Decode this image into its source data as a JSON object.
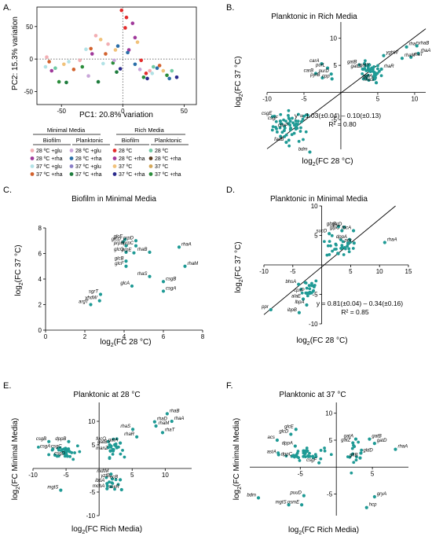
{
  "colors": {
    "teal": "#1f9a95",
    "glu28": "#f2aeb3",
    "rha28": "#a0399b",
    "glu37": "#b2e2e6",
    "rha37": "#d2622e",
    "rich28": "#e32c2c",
    "richRha28": "#2b6fa8",
    "rich37": "#f1c27b",
    "richRha37": "#2b8d3b",
    "pl28glu": "#c9a6d9",
    "pl28rha": "#e8c93f",
    "pl37glu": "#8a7ec7",
    "pl37rha": "#1e7c3d",
    "rich28pl": "#6fc9a3",
    "richRha28pl": "#5a3b1e",
    "rich37pl": "#d4a85a",
    "richRha37pl": "#2a2a8c"
  },
  "legend": {
    "group_minimal": "Minimal Media",
    "group_rich": "Rich Media",
    "sub_biofilm": "Biofilm",
    "sub_planktonic": "Planktonic",
    "minimal_biofilm": [
      "28 ºC +glu",
      "28 ºC +rha",
      "37 ºC +glu",
      "37 ºC +rha"
    ],
    "minimal_planktonic": [
      "28 ºC +glu",
      "28 ºC +rha",
      "37 ºC +glu",
      "37 ºC +rha"
    ],
    "rich_biofilm": [
      "28 ºC",
      "28 ºC +rha",
      "37 ºC",
      "37 ºC +rha"
    ],
    "rich_planktonic": [
      "28 ºC",
      "28 ºC +rha",
      "37 ºC",
      "37 ºC +rha"
    ]
  },
  "chart_data": [
    {
      "panel": "A.",
      "type": "scatter",
      "title": "",
      "xlabel": "PC1: 20.8% variation",
      "ylabel": "PC2: 15.3% variation",
      "xlim": [
        -70,
        60
      ],
      "ylim": [
        -70,
        80
      ],
      "xticks": [
        "-50",
        "0",
        "50"
      ],
      "yticks": [
        "-50",
        "0",
        "50"
      ],
      "series": [
        {
          "color_key": "glu28",
          "points": [
            [
              -62,
              3
            ],
            [
              -35,
              -2
            ],
            [
              -22,
              36
            ],
            [
              -12,
              23
            ],
            [
              22,
              -18
            ]
          ]
        },
        {
          "color_key": "rha28",
          "points": [
            [
              -58,
              -18
            ],
            [
              -25,
              8
            ],
            [
              5,
              14
            ],
            [
              8,
              55
            ],
            [
              10,
              33
            ]
          ]
        },
        {
          "color_key": "glu37",
          "points": [
            [
              -63,
              -12
            ],
            [
              -44,
              -4
            ],
            [
              -30,
              15
            ],
            [
              -16,
              -7
            ],
            [
              24,
              -22
            ]
          ]
        },
        {
          "color_key": "rha37",
          "points": [
            [
              -60,
              -4
            ],
            [
              -40,
              -16
            ],
            [
              -26,
              16
            ],
            [
              -14,
              8
            ],
            [
              30,
              -10
            ]
          ]
        },
        {
          "color_key": "rich28",
          "points": [
            [
              -1,
              75
            ],
            [
              3,
              64
            ],
            [
              2,
              48
            ],
            [
              15,
              -2
            ],
            [
              19,
              -22
            ]
          ]
        },
        {
          "color_key": "richRha28",
          "points": [
            [
              -4,
              20
            ],
            [
              4,
              10
            ],
            [
              10,
              -8
            ],
            [
              28,
              -14
            ],
            [
              38,
              -30
            ]
          ]
        },
        {
          "color_key": "rich37",
          "points": [
            [
              -48,
              -8
            ],
            [
              -18,
              30
            ],
            [
              -6,
              14
            ],
            [
              12,
              26
            ],
            [
              33,
              -18
            ]
          ]
        },
        {
          "color_key": "richRha37",
          "points": [
            [
              -52,
              -35
            ],
            [
              -33,
              -12
            ],
            [
              -8,
              -6
            ],
            [
              17,
              -28
            ],
            [
              36,
              -25
            ]
          ]
        },
        {
          "color_key": "pl28glu",
          "points": [
            [
              -28,
              -26
            ],
            [
              -7,
              -2
            ],
            [
              14,
              -16
            ]
          ]
        },
        {
          "color_key": "pl37rha",
          "points": [
            [
              -46,
              -36
            ],
            [
              -20,
              -35
            ],
            [
              -5,
              -20
            ]
          ]
        },
        {
          "color_key": "rich28pl",
          "points": [
            [
              -55,
              -14
            ],
            [
              25,
              -12
            ],
            [
              40,
              -18
            ]
          ]
        },
        {
          "color_key": "richRha37pl",
          "points": [
            [
              -2,
              -15
            ],
            [
              20,
              -30
            ],
            [
              44,
              -28
            ]
          ]
        }
      ]
    },
    {
      "panel": "B.",
      "type": "scatter",
      "title": "Planktonic in Rich Media",
      "xlabel": "log2(FC 28 °C)",
      "ylabel": "log2(FC 37 °C)",
      "xlim": [
        -10,
        11.5
      ],
      "ylim": [
        -10.5,
        13
      ],
      "xticks": [
        "-10",
        "-5",
        "5",
        "10"
      ],
      "yticks": [
        "-5",
        "5",
        "10"
      ],
      "equation": "y = 1.03(±0.04) – 0.10(±0.13)",
      "r2": "R² = 0.80",
      "fit": {
        "slope": 1.03,
        "intercept": -0.1
      },
      "labeled_points": [
        {
          "name": "rhaD",
          "x": 8.9,
          "y": 8.4
        },
        {
          "name": "rhaB",
          "x": 10.3,
          "y": 8.6
        },
        {
          "name": "rhaA",
          "x": 10.5,
          "y": 7.2
        },
        {
          "name": "rhaT",
          "x": 9.5,
          "y": 6.5
        },
        {
          "name": "rhaM",
          "x": 8.3,
          "y": 6.3
        },
        {
          "name": "yghW",
          "x": 5.8,
          "y": 6.8
        },
        {
          "name": "gatB",
          "x": 2.5,
          "y": 5.1
        },
        {
          "name": "gatD",
          "x": 3.0,
          "y": 4.3
        },
        {
          "name": "gatY",
          "x": 4.2,
          "y": 4.5
        },
        {
          "name": "rhaR",
          "x": 5.5,
          "y": 4.3
        },
        {
          "name": "gatA",
          "x": 4.6,
          "y": 2.5
        },
        {
          "name": "rhaS",
          "x": 4.8,
          "y": 1.8
        },
        {
          "name": "carA",
          "x": -2.6,
          "y": 5.3
        },
        {
          "name": "purL",
          "x": -1.8,
          "y": 4.5
        },
        {
          "name": "carB",
          "x": -3.4,
          "y": 3.5
        },
        {
          "name": "purD",
          "x": -1.3,
          "y": 3.4
        },
        {
          "name": "pyrB",
          "x": -2.5,
          "y": 2.7
        },
        {
          "name": "cpp",
          "x": -1.2,
          "y": 2.5
        },
        {
          "name": "csgE",
          "x": -9.0,
          "y": -4.4
        },
        {
          "name": "csgF",
          "x": -8.2,
          "y": -5.3
        },
        {
          "name": "cpxP",
          "x": -6.8,
          "y": -6.6
        },
        {
          "name": "fadB",
          "x": -7.4,
          "y": -9.2
        },
        {
          "name": "bdm",
          "x": -4.2,
          "y": -11.0
        }
      ],
      "clusters": [
        {
          "cx": -6.6,
          "cy": -6.2,
          "sx": 1.3,
          "sy": 1.4,
          "n": 55
        },
        {
          "cx": 3.8,
          "cy": 3.6,
          "sx": 0.8,
          "sy": 0.9,
          "n": 40
        }
      ]
    },
    {
      "panel": "C.",
      "type": "scatter",
      "title": "Biofilm in Minimal Media",
      "xlabel": "log2(FC 28 °C)",
      "ylabel": "log2(FC 37 °C)",
      "xlim": [
        0,
        8
      ],
      "ylim": [
        0,
        8
      ],
      "xticks": [
        "0",
        "2",
        "4",
        "6",
        "8"
      ],
      "yticks": [
        "0",
        "2",
        "4",
        "6",
        "8"
      ],
      "labeled_points": [
        {
          "name": "glcE",
          "x": 4.05,
          "y": 7.1
        },
        {
          "name": "glcD",
          "x": 3.95,
          "y": 6.9
        },
        {
          "name": "prpD",
          "x": 4.6,
          "y": 7.0
        },
        {
          "name": "prpB",
          "x": 4.1,
          "y": 6.6
        },
        {
          "name": "prpC",
          "x": 4.6,
          "y": 6.6
        },
        {
          "name": "glcG",
          "x": 4.1,
          "y": 6.1
        },
        {
          "name": "prpE",
          "x": 4.5,
          "y": 6.05
        },
        {
          "name": "rhaB",
          "x": 5.3,
          "y": 6.1
        },
        {
          "name": "rhaA",
          "x": 6.8,
          "y": 6.5
        },
        {
          "name": "glcB",
          "x": 4.1,
          "y": 5.4
        },
        {
          "name": "glcF",
          "x": 4.1,
          "y": 5.0
        },
        {
          "name": "rhaM",
          "x": 7.1,
          "y": 5.0
        },
        {
          "name": "rhaS",
          "x": 5.3,
          "y": 4.2
        },
        {
          "name": "csgB",
          "x": 6.0,
          "y": 3.8
        },
        {
          "name": "glcA",
          "x": 4.4,
          "y": 3.45
        },
        {
          "name": "csgA",
          "x": 6.0,
          "y": 3.05
        },
        {
          "name": "sgrT",
          "x": 2.8,
          "y": 2.8
        },
        {
          "name": "yhdW",
          "x": 2.75,
          "y": 2.3
        },
        {
          "name": "argT",
          "x": 2.3,
          "y": 2.0
        }
      ]
    },
    {
      "panel": "D.",
      "type": "scatter",
      "title": "Planktonic in Minimal Media",
      "xlabel": "log2(FC 28 °C)",
      "ylabel": "log2(FC 37 °C)",
      "xlim": [
        -10,
        15
      ],
      "ylim": [
        -10,
        10
      ],
      "xticks": [
        "-10",
        "-5",
        "5",
        "10",
        "15"
      ],
      "yticks": [
        "-10",
        "-5",
        "5",
        "10"
      ],
      "equation": "y = 0.81(±0.04) – 0.34(±0.16)",
      "r2": "R² = 0.85",
      "fit": {
        "slope": 0.81,
        "intercept": -0.34
      },
      "labeled_points": [
        {
          "name": "glpB",
          "x": 2.9,
          "y": 6.5
        },
        {
          "name": "gatD",
          "x": 3.9,
          "y": 6.4
        },
        {
          "name": "glpC",
          "x": 3.5,
          "y": 5.8
        },
        {
          "name": "fdcA",
          "x": 5.5,
          "y": 5.8
        },
        {
          "name": "sucD",
          "x": 1.3,
          "y": 5.3
        },
        {
          "name": "dppA",
          "x": 4.8,
          "y": 4.3
        },
        {
          "name": "pck",
          "x": 5.6,
          "y": 3.7
        },
        {
          "name": "rhaA",
          "x": 10.9,
          "y": 3.8
        },
        {
          "name": "bhsA",
          "x": -4.0,
          "y": -3.3
        },
        {
          "name": "cpxP",
          "x": -2.6,
          "y": -4.8
        },
        {
          "name": "alaE",
          "x": -3.2,
          "y": -5.8
        },
        {
          "name": "lbpA",
          "x": -2.6,
          "y": -6.8
        },
        {
          "name": "ibpB",
          "x": -3.9,
          "y": -8.1
        },
        {
          "name": "ppr",
          "x": -8.8,
          "y": -7.6
        }
      ],
      "clusters": [
        {
          "cx": 3.2,
          "cy": 3.0,
          "sx": 1.2,
          "sy": 0.9,
          "n": 30
        },
        {
          "cx": -2.5,
          "cy": -3.9,
          "sx": 1.0,
          "sy": 0.8,
          "n": 22
        }
      ]
    },
    {
      "panel": "E.",
      "type": "scatter",
      "title": "Planktonic at 28 °C",
      "xlabel": "log2(FC Rich Media)",
      "ylabel": "log2(FC Minimal Media)",
      "xlim": [
        -10,
        14
      ],
      "ylim": [
        -10,
        14
      ],
      "xticks": [
        "-10",
        "-5",
        "5",
        "10"
      ],
      "yticks": [
        "-10",
        "-5",
        "5",
        "10"
      ],
      "labeled_points": [
        {
          "name": "rhaB",
          "x": 10.3,
          "y": 11.6
        },
        {
          "name": "rhaA",
          "x": 11.0,
          "y": 10.0
        },
        {
          "name": "rhaD",
          "x": 8.4,
          "y": 9.9
        },
        {
          "name": "rhaM",
          "x": 8.6,
          "y": 9.0
        },
        {
          "name": "rhaS",
          "x": 5.1,
          "y": 8.3
        },
        {
          "name": "rhaT",
          "x": 9.6,
          "y": 7.6
        },
        {
          "name": "rhaR",
          "x": 5.7,
          "y": 6.7
        },
        {
          "name": "fucO",
          "x": 1.4,
          "y": 5.7
        },
        {
          "name": "gatB",
          "x": 1.6,
          "y": 5.0
        },
        {
          "name": "gatA",
          "x": 3.2,
          "y": 5.4
        },
        {
          "name": "manZ",
          "x": 1.7,
          "y": 3.7
        },
        {
          "name": "csgB",
          "x": -7.6,
          "y": 5.7
        },
        {
          "name": "csgA",
          "x": -7.0,
          "y": 4.1
        },
        {
          "name": "dppB",
          "x": -4.6,
          "y": 5.7
        },
        {
          "name": "csgC",
          "x": -5.3,
          "y": 4.1
        },
        {
          "name": "csgD",
          "x": -4.8,
          "y": 2.6
        },
        {
          "name": "mgtS",
          "x": -5.8,
          "y": -4.6
        },
        {
          "name": "mdtM",
          "x": 1.8,
          "y": -1.2
        },
        {
          "name": "yzfB",
          "x": 2.0,
          "y": -2.2
        },
        {
          "name": "ibpA",
          "x": 1.2,
          "y": -3.2
        },
        {
          "name": "ecB",
          "x": 3.2,
          "y": -2.4
        },
        {
          "name": "mcbA",
          "x": 1.2,
          "y": -4.3
        },
        {
          "name": "soxR",
          "x": 3.4,
          "y": -4.5
        }
      ],
      "clusters": [
        {
          "cx": -5.0,
          "cy": 3.6,
          "sx": 1.2,
          "sy": 0.8,
          "n": 35
        },
        {
          "cx": 2.2,
          "cy": 4.2,
          "sx": 0.6,
          "sy": 0.9,
          "n": 22
        },
        {
          "cx": 2.0,
          "cy": -3.0,
          "sx": 0.5,
          "sy": 0.9,
          "n": 10
        }
      ]
    },
    {
      "panel": "F.",
      "type": "scatter",
      "title": "Planktonic at 37 °C",
      "xlabel": "log2(FC Rich Media)",
      "ylabel": "log2(FC Minimal Media)",
      "xlim": [
        -12,
        10
      ],
      "ylim": [
        -9,
        12
      ],
      "xticks": [
        "-5",
        "5"
      ],
      "yticks": [
        "-5",
        "5",
        "10"
      ],
      "labeled_points": [
        {
          "name": "glcE",
          "x": -5.6,
          "y": 7.0
        },
        {
          "name": "glcD",
          "x": -6.3,
          "y": 6.1
        },
        {
          "name": "acs",
          "x": -8.2,
          "y": 5.0
        },
        {
          "name": "dppA",
          "x": -5.7,
          "y": 3.9
        },
        {
          "name": "astA",
          "x": -8.0,
          "y": 2.3
        },
        {
          "name": "dppC",
          "x": -5.8,
          "y": 1.9
        },
        {
          "name": "csgF",
          "x": -2.4,
          "y": 0.8
        },
        {
          "name": "gatA",
          "x": 2.7,
          "y": 5.2
        },
        {
          "name": "gatB",
          "x": 4.6,
          "y": 5.2
        },
        {
          "name": "gatZ",
          "x": 2.3,
          "y": 4.5
        },
        {
          "name": "gatD",
          "x": 5.3,
          "y": 4.4
        },
        {
          "name": "rhaA",
          "x": 8.2,
          "y": 3.3
        },
        {
          "name": "gldD",
          "x": 3.4,
          "y": 2.6
        },
        {
          "name": "gltB",
          "x": 3.3,
          "y": 1.7
        },
        {
          "name": "bdm",
          "x": -10.8,
          "y": -5.7
        },
        {
          "name": "puuD",
          "x": -4.5,
          "y": -5.3
        },
        {
          "name": "mgtS",
          "x": -6.6,
          "y": -7.0
        },
        {
          "name": "osmE",
          "x": -4.8,
          "y": -7.0
        },
        {
          "name": "gryA",
          "x": 5.3,
          "y": -5.5
        },
        {
          "name": "hcp",
          "x": 4.2,
          "y": -7.5
        }
      ],
      "clusters": [
        {
          "cx": -4.3,
          "cy": 2.5,
          "sx": 1.3,
          "sy": 0.6,
          "n": 35
        },
        {
          "cx": 2.6,
          "cy": 2.3,
          "sx": 0.5,
          "sy": 1.0,
          "n": 14
        }
      ]
    }
  ]
}
